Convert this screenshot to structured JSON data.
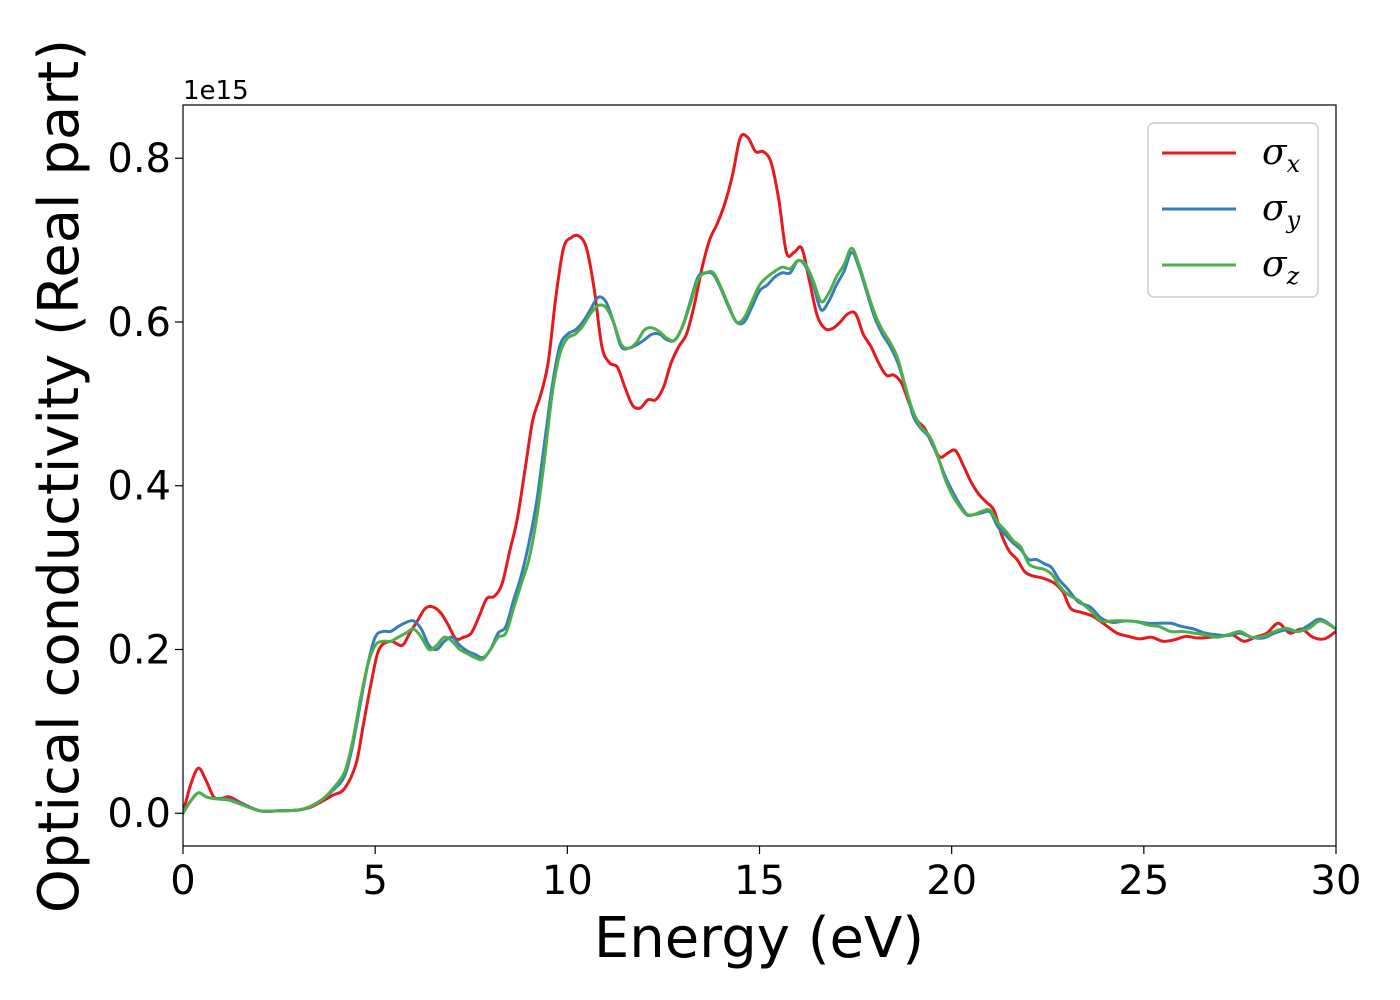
{
  "chart_data": {
    "type": "line",
    "xlabel": "Energy (eV)",
    "ylabel": "Optical conductivity (Real part)",
    "y_offset_label": "1e15",
    "xlim": [
      0,
      30
    ],
    "ylim": [
      -0.04,
      0.865
    ],
    "x_ticks": [
      0,
      5,
      10,
      15,
      20,
      25,
      30
    ],
    "x_tick_labels": [
      "0",
      "5",
      "10",
      "15",
      "20",
      "25",
      "30"
    ],
    "y_ticks": [
      0.0,
      0.2,
      0.4,
      0.6,
      0.8
    ],
    "y_tick_labels": [
      "0.0",
      "0.2",
      "0.4",
      "0.6",
      "0.8"
    ],
    "grid": false,
    "legend_position": "top-right",
    "series": [
      {
        "name": "σ",
        "subscript": "x",
        "color": "#e41a1c",
        "x": [
          0,
          0.2,
          0.4,
          0.6,
          0.8,
          1.0,
          1.2,
          1.5,
          2.0,
          2.5,
          3.0,
          3.3,
          3.6,
          3.9,
          4.2,
          4.5,
          4.7,
          4.9,
          5.1,
          5.4,
          5.7,
          5.9,
          6.1,
          6.3,
          6.5,
          6.7,
          6.9,
          7.1,
          7.3,
          7.5,
          7.7,
          7.9,
          8.1,
          8.3,
          8.5,
          8.7,
          8.9,
          9.1,
          9.3,
          9.5,
          9.7,
          9.9,
          10.1,
          10.3,
          10.5,
          10.7,
          10.9,
          11.1,
          11.3,
          11.5,
          11.7,
          11.9,
          12.1,
          12.3,
          12.5,
          12.7,
          12.9,
          13.1,
          13.3,
          13.5,
          13.7,
          13.9,
          14.1,
          14.3,
          14.5,
          14.7,
          14.9,
          15.1,
          15.3,
          15.5,
          15.7,
          15.9,
          16.1,
          16.3,
          16.5,
          16.7,
          16.9,
          17.1,
          17.3,
          17.5,
          17.7,
          17.9,
          18.1,
          18.3,
          18.5,
          18.7,
          18.9,
          19.1,
          19.3,
          19.5,
          19.7,
          19.9,
          20.1,
          20.3,
          20.5,
          20.7,
          20.9,
          21.1,
          21.3,
          21.5,
          21.7,
          21.9,
          22.1,
          22.3,
          22.5,
          22.7,
          22.9,
          23.1,
          23.4,
          23.7,
          24.0,
          24.3,
          24.6,
          24.9,
          25.2,
          25.5,
          25.8,
          26.1,
          26.4,
          26.7,
          27.0,
          27.3,
          27.6,
          27.9,
          28.2,
          28.5,
          28.8,
          29.1,
          29.4,
          29.7,
          30.0
        ],
        "y": [
          0.0,
          0.035,
          0.055,
          0.04,
          0.02,
          0.018,
          0.02,
          0.013,
          0.003,
          0.003,
          0.004,
          0.007,
          0.014,
          0.022,
          0.03,
          0.06,
          0.11,
          0.16,
          0.2,
          0.21,
          0.205,
          0.22,
          0.235,
          0.25,
          0.252,
          0.245,
          0.23,
          0.213,
          0.215,
          0.22,
          0.24,
          0.262,
          0.265,
          0.28,
          0.32,
          0.36,
          0.42,
          0.48,
          0.51,
          0.55,
          0.63,
          0.69,
          0.703,
          0.705,
          0.69,
          0.64,
          0.57,
          0.55,
          0.545,
          0.52,
          0.498,
          0.495,
          0.505,
          0.505,
          0.52,
          0.55,
          0.57,
          0.585,
          0.62,
          0.665,
          0.7,
          0.72,
          0.745,
          0.78,
          0.825,
          0.825,
          0.808,
          0.808,
          0.795,
          0.75,
          0.685,
          0.685,
          0.69,
          0.65,
          0.608,
          0.592,
          0.592,
          0.6,
          0.61,
          0.61,
          0.585,
          0.57,
          0.55,
          0.535,
          0.535,
          0.525,
          0.5,
          0.48,
          0.47,
          0.45,
          0.435,
          0.44,
          0.443,
          0.425,
          0.405,
          0.39,
          0.38,
          0.37,
          0.34,
          0.32,
          0.31,
          0.295,
          0.29,
          0.288,
          0.285,
          0.28,
          0.27,
          0.25,
          0.245,
          0.24,
          0.23,
          0.22,
          0.216,
          0.213,
          0.215,
          0.21,
          0.212,
          0.216,
          0.214,
          0.215,
          0.216,
          0.218,
          0.21,
          0.215,
          0.22,
          0.232,
          0.22,
          0.225,
          0.215,
          0.213,
          0.222
        ]
      },
      {
        "name": "σ",
        "subscript": "y",
        "color": "#377eb8",
        "x": [
          0,
          0.2,
          0.4,
          0.6,
          0.8,
          1.0,
          1.2,
          1.5,
          2.0,
          2.5,
          3.0,
          3.3,
          3.6,
          3.9,
          4.2,
          4.4,
          4.6,
          4.8,
          5.0,
          5.2,
          5.4,
          5.6,
          5.8,
          6.0,
          6.2,
          6.4,
          6.6,
          6.8,
          7.0,
          7.2,
          7.4,
          7.6,
          7.8,
          8.0,
          8.2,
          8.4,
          8.6,
          8.8,
          9.0,
          9.2,
          9.4,
          9.6,
          9.8,
          10.0,
          10.2,
          10.4,
          10.6,
          10.8,
          11.0,
          11.2,
          11.4,
          11.6,
          11.8,
          12.0,
          12.2,
          12.4,
          12.6,
          12.8,
          13.0,
          13.2,
          13.4,
          13.6,
          13.8,
          14.0,
          14.2,
          14.4,
          14.6,
          14.8,
          15.0,
          15.2,
          15.4,
          15.6,
          15.8,
          16.0,
          16.2,
          16.4,
          16.6,
          16.8,
          17.0,
          17.2,
          17.4,
          17.6,
          17.8,
          18.0,
          18.2,
          18.4,
          18.6,
          18.8,
          19.0,
          19.2,
          19.4,
          19.6,
          19.8,
          20.0,
          20.2,
          20.4,
          20.6,
          20.8,
          21.0,
          21.2,
          21.4,
          21.6,
          21.8,
          22.0,
          22.2,
          22.4,
          22.6,
          22.8,
          23.0,
          23.3,
          23.6,
          23.9,
          24.2,
          24.5,
          24.8,
          25.1,
          25.4,
          25.7,
          26.0,
          26.3,
          26.6,
          26.9,
          27.2,
          27.5,
          27.8,
          28.1,
          28.4,
          28.7,
          29.0,
          29.3,
          29.6,
          30.0
        ],
        "y": [
          0.0,
          0.015,
          0.025,
          0.02,
          0.018,
          0.018,
          0.017,
          0.012,
          0.003,
          0.003,
          0.004,
          0.008,
          0.016,
          0.028,
          0.045,
          0.08,
          0.13,
          0.18,
          0.215,
          0.222,
          0.222,
          0.228,
          0.233,
          0.235,
          0.225,
          0.205,
          0.2,
          0.21,
          0.215,
          0.205,
          0.198,
          0.194,
          0.19,
          0.2,
          0.22,
          0.228,
          0.26,
          0.29,
          0.33,
          0.38,
          0.45,
          0.52,
          0.57,
          0.585,
          0.59,
          0.6,
          0.615,
          0.63,
          0.625,
          0.6,
          0.57,
          0.568,
          0.572,
          0.578,
          0.585,
          0.585,
          0.578,
          0.578,
          0.595,
          0.625,
          0.655,
          0.66,
          0.658,
          0.64,
          0.618,
          0.6,
          0.6,
          0.618,
          0.638,
          0.645,
          0.655,
          0.66,
          0.66,
          0.675,
          0.668,
          0.645,
          0.615,
          0.625,
          0.645,
          0.662,
          0.685,
          0.665,
          0.635,
          0.605,
          0.585,
          0.57,
          0.55,
          0.52,
          0.485,
          0.47,
          0.46,
          0.44,
          0.415,
          0.395,
          0.378,
          0.365,
          0.365,
          0.367,
          0.368,
          0.35,
          0.34,
          0.33,
          0.322,
          0.31,
          0.31,
          0.305,
          0.3,
          0.285,
          0.275,
          0.258,
          0.252,
          0.238,
          0.233,
          0.235,
          0.234,
          0.232,
          0.232,
          0.232,
          0.228,
          0.225,
          0.22,
          0.218,
          0.217,
          0.22,
          0.215,
          0.214,
          0.22,
          0.224,
          0.222,
          0.23,
          0.237,
          0.225
        ]
      },
      {
        "name": "σ",
        "subscript": "z",
        "color": "#4daf4a",
        "x": [
          0,
          0.2,
          0.4,
          0.6,
          0.8,
          1.0,
          1.2,
          1.5,
          2.0,
          2.5,
          3.0,
          3.3,
          3.6,
          3.9,
          4.2,
          4.4,
          4.6,
          4.8,
          5.0,
          5.2,
          5.4,
          5.6,
          5.8,
          6.0,
          6.2,
          6.4,
          6.6,
          6.8,
          7.0,
          7.2,
          7.4,
          7.6,
          7.8,
          8.0,
          8.2,
          8.4,
          8.6,
          8.8,
          9.0,
          9.2,
          9.4,
          9.6,
          9.8,
          10.0,
          10.2,
          10.4,
          10.6,
          10.8,
          11.0,
          11.2,
          11.4,
          11.6,
          11.8,
          12.0,
          12.2,
          12.4,
          12.6,
          12.8,
          13.0,
          13.2,
          13.4,
          13.6,
          13.8,
          14.0,
          14.2,
          14.4,
          14.6,
          14.8,
          15.0,
          15.2,
          15.4,
          15.6,
          15.8,
          16.0,
          16.2,
          16.4,
          16.6,
          16.8,
          17.0,
          17.2,
          17.4,
          17.6,
          17.8,
          18.0,
          18.2,
          18.4,
          18.6,
          18.8,
          19.0,
          19.2,
          19.4,
          19.6,
          19.8,
          20.0,
          20.2,
          20.4,
          20.6,
          20.8,
          21.0,
          21.2,
          21.4,
          21.6,
          21.8,
          22.0,
          22.2,
          22.4,
          22.6,
          22.8,
          23.0,
          23.3,
          23.6,
          23.9,
          24.2,
          24.5,
          24.8,
          25.1,
          25.4,
          25.7,
          26.0,
          26.3,
          26.6,
          26.9,
          27.2,
          27.5,
          27.8,
          28.1,
          28.4,
          28.7,
          29.0,
          29.3,
          29.6,
          30.0
        ],
        "y": [
          0.0,
          0.015,
          0.025,
          0.02,
          0.018,
          0.017,
          0.016,
          0.011,
          0.003,
          0.003,
          0.004,
          0.008,
          0.016,
          0.03,
          0.05,
          0.085,
          0.135,
          0.18,
          0.205,
          0.21,
          0.21,
          0.215,
          0.22,
          0.225,
          0.215,
          0.2,
          0.205,
          0.215,
          0.21,
          0.2,
          0.195,
          0.19,
          0.188,
          0.2,
          0.215,
          0.22,
          0.25,
          0.28,
          0.31,
          0.36,
          0.43,
          0.51,
          0.56,
          0.58,
          0.585,
          0.595,
          0.61,
          0.62,
          0.618,
          0.6,
          0.573,
          0.568,
          0.575,
          0.59,
          0.593,
          0.588,
          0.58,
          0.578,
          0.595,
          0.622,
          0.652,
          0.66,
          0.66,
          0.642,
          0.62,
          0.6,
          0.605,
          0.625,
          0.645,
          0.655,
          0.662,
          0.667,
          0.665,
          0.675,
          0.67,
          0.65,
          0.625,
          0.635,
          0.655,
          0.67,
          0.69,
          0.668,
          0.638,
          0.61,
          0.59,
          0.575,
          0.555,
          0.52,
          0.49,
          0.472,
          0.462,
          0.442,
          0.412,
          0.39,
          0.375,
          0.364,
          0.365,
          0.369,
          0.37,
          0.355,
          0.345,
          0.333,
          0.325,
          0.305,
          0.3,
          0.298,
          0.292,
          0.278,
          0.268,
          0.26,
          0.248,
          0.235,
          0.235,
          0.235,
          0.234,
          0.23,
          0.228,
          0.222,
          0.222,
          0.22,
          0.218,
          0.215,
          0.218,
          0.222,
          0.215,
          0.216,
          0.222,
          0.226,
          0.222,
          0.226,
          0.235,
          0.225
        ]
      }
    ]
  }
}
